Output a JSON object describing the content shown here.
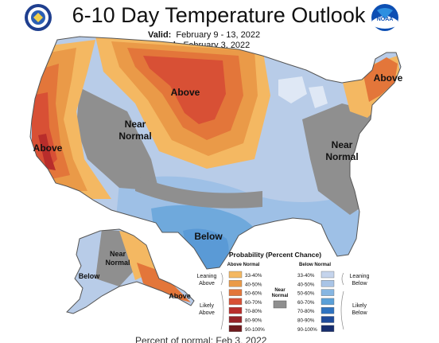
{
  "header": {
    "title": "6-10 Day Temperature Outlook",
    "valid_label": "Valid:",
    "valid_value": "February 9 - 13, 2022",
    "issued_label": "Issued:",
    "issued_value": "February 3, 2022"
  },
  "logos": {
    "left": {
      "name": "commerce-seal",
      "text": "DEPARTMENT OF COMMERCE"
    },
    "right": {
      "name": "noaa-logo",
      "text": "NOAA"
    }
  },
  "map_labels": {
    "above_north_central": "Above",
    "above_west": "Above",
    "above_northeast": "Above",
    "near_normal_west_1": "Near",
    "near_normal_west_2": "Normal",
    "near_normal_east_1": "Near",
    "near_normal_east_2": "Normal",
    "below_south": "Below",
    "alaska_near_1": "Near",
    "alaska_near_2": "Normal",
    "alaska_below": "Below",
    "alaska_above": "Above"
  },
  "legend": {
    "title": "Probability (Percent Chance)",
    "above_header": "Above Normal",
    "below_header": "Below Normal",
    "near_label_1": "Near",
    "near_label_2": "Normal",
    "leaning_above_1": "Leaning",
    "leaning_above_2": "Above",
    "likely_above_1": "Likely",
    "likely_above_2": "Above",
    "leaning_below_1": "Leaning",
    "leaning_below_2": "Below",
    "likely_below_1": "Likely",
    "likely_below_2": "Below",
    "above_ranges": [
      "33-40%",
      "40-50%",
      "50-60%",
      "60-70%",
      "70-80%",
      "80-90%",
      "90-100%"
    ],
    "below_ranges": [
      "33-40%",
      "40-50%",
      "50-60%",
      "60-70%",
      "70-80%",
      "80-90%",
      "90-100%"
    ],
    "above_colors": [
      "#f4b862",
      "#ea9a48",
      "#e3763a",
      "#d85035",
      "#b82d2b",
      "#962227",
      "#6e1a1d"
    ],
    "below_colors": [
      "#c5d4ec",
      "#a9c4e6",
      "#86b6e2",
      "#5aa0d8",
      "#2f73c0",
      "#1f4b9a",
      "#172e6e"
    ],
    "near_color": "#8f8f8f"
  },
  "footer": {
    "text": "Percent of normal: Feb 3, 2022"
  }
}
